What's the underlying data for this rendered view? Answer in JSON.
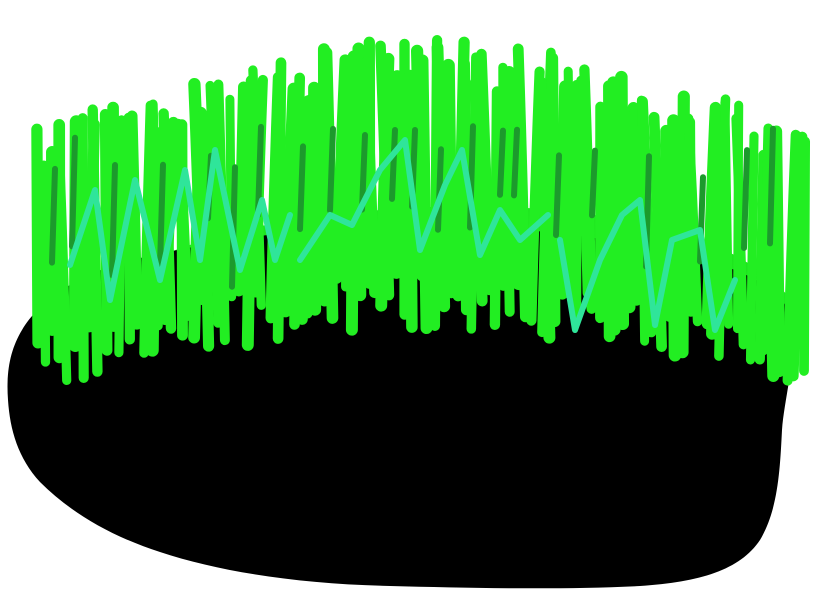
{
  "scene": {
    "subject": "grass-on-dirt-mound",
    "colors": {
      "background": "#ffffff",
      "soil": "#000000",
      "grass_bright": "#22ee22",
      "grass_dark": "#1c9a2c",
      "grass_mint": "#2fe59a"
    }
  }
}
